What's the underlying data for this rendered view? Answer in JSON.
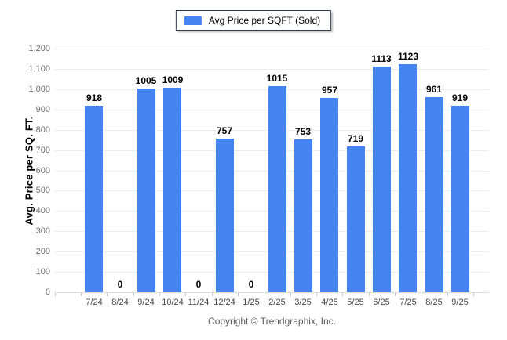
{
  "legend": {
    "label": "Avg Price per SQFT (Sold)"
  },
  "chart_data": {
    "type": "bar",
    "title": "",
    "series_name": "Avg Price per SQFT (Sold)",
    "categories": [
      "7/24",
      "8/24",
      "9/24",
      "10/24",
      "11/24",
      "12/24",
      "1/25",
      "2/25",
      "3/25",
      "4/25",
      "5/25",
      "6/25",
      "7/25",
      "8/25",
      "9/25"
    ],
    "values": [
      918,
      0,
      1005,
      1009,
      0,
      757,
      0,
      1015,
      753,
      957,
      719,
      1113,
      1123,
      961,
      919
    ],
    "xlabel": "",
    "ylabel": "Avg. Price per SQ. FT.",
    "ylim": [
      0,
      1200
    ],
    "ytick_step": 100,
    "grid": true,
    "legend_position": "top-center",
    "bar_color": "#4483F0",
    "value_labels_shown": true
  },
  "colors": {
    "bar": "#4483F0",
    "grid": "#ececec",
    "y_tick_text": "#6e6e6e",
    "x_tick_text": "#474747",
    "value_text": "#000000",
    "legend_border": "#2f3b52",
    "copyright_text": "#5a5a5a",
    "background": "#ffffff"
  },
  "footer": {
    "copyright": "Copyright © Trendgraphix, Inc."
  }
}
